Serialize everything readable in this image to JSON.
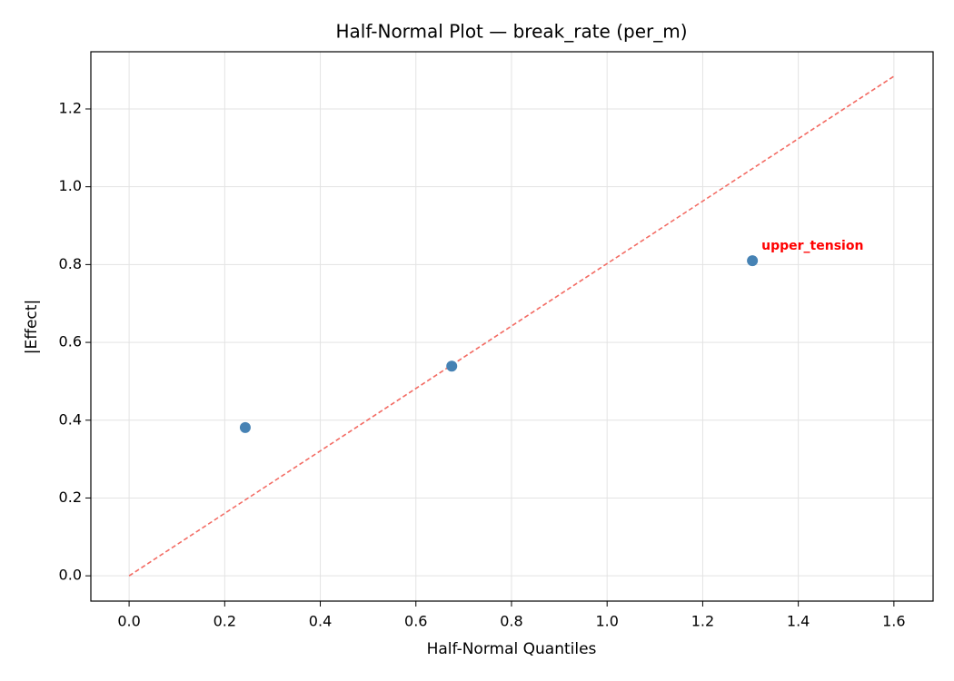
{
  "chart_data": {
    "type": "scatter",
    "title": "Half-Normal Plot — break_rate (per_m)",
    "x_label": "Half-Normal Quantiles",
    "y_label": "|Effect|",
    "x": [
      0.243,
      0.675,
      1.304
    ],
    "values": [
      0.381,
      0.539,
      0.81
    ],
    "color": "#4682b4",
    "point_labels": [
      null,
      null,
      "upper_tension"
    ],
    "point_label_color": "#ff0000",
    "reference_line": {
      "x": [
        0,
        1.6
      ],
      "y": [
        0,
        1.284
      ],
      "color": "#f36b63"
    },
    "xlim": [
      -0.08,
      1.682
    ],
    "ylim": [
      -0.065,
      1.347
    ],
    "xticks": [
      {
        "value": 0,
        "label": "0.0"
      },
      0.2,
      0.4,
      0.6,
      0.8,
      {
        "value": 1,
        "label": "1.0"
      },
      1.2,
      1.4,
      1.6
    ],
    "yticks": [
      {
        "value": 0,
        "label": "0.0"
      },
      0.2,
      0.4,
      0.6,
      0.8,
      {
        "value": 1,
        "label": "1.0"
      },
      1.2
    ],
    "grid": true
  }
}
